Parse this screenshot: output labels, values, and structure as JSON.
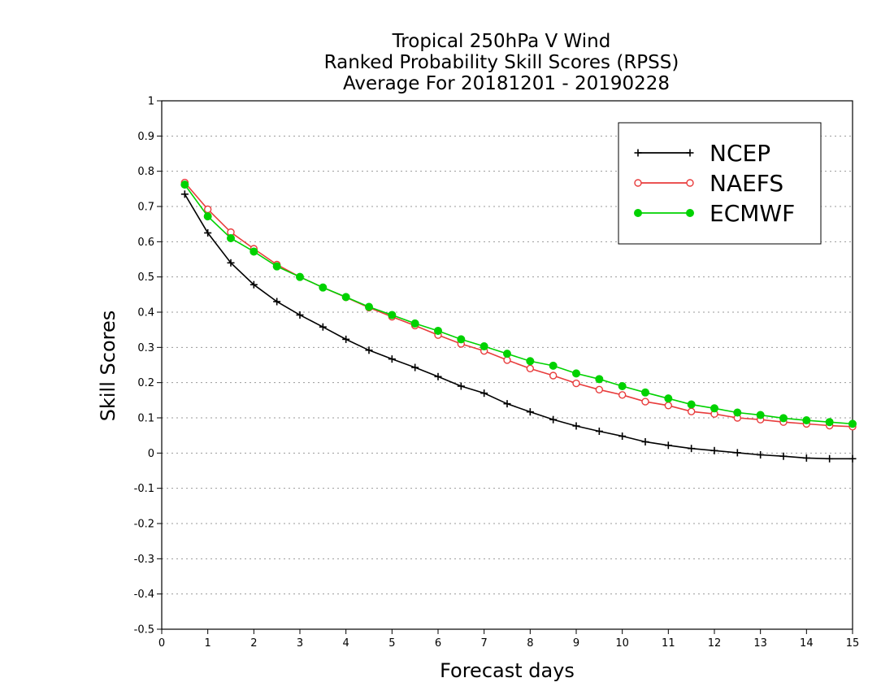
{
  "chart_data": {
    "type": "line",
    "title": "Tropical 250hPa V Wind",
    "subtitle": "Ranked Probability Skill Scores (RPSS)",
    "period": "Average For 20181201 - 20190228",
    "xlabel": "Forecast days",
    "ylabel": "Skill Scores",
    "xlim": [
      0,
      15
    ],
    "ylim": [
      -0.5,
      1
    ],
    "xticks": [
      0,
      1,
      2,
      3,
      4,
      5,
      6,
      7,
      8,
      9,
      10,
      11,
      12,
      13,
      14,
      15
    ],
    "yticks": [
      -0.5,
      -0.4,
      -0.3,
      -0.2,
      -0.1,
      0,
      0.1,
      0.2,
      0.3,
      0.4,
      0.5,
      0.6,
      0.7,
      0.8,
      0.9,
      1
    ],
    "ytick_labels": [
      "-0.5",
      "-0.4",
      "-0.3",
      "-0.2",
      "-0.1",
      "0",
      "0.1",
      "0.2",
      "0.3",
      "0.4",
      "0.5",
      "0.6",
      "0.7",
      "0.8",
      "0.9",
      "1"
    ],
    "grid": "horizontal dotted",
    "legend_position": "top-right",
    "x": [
      0.5,
      1,
      1.5,
      2,
      2.5,
      3,
      3.5,
      4,
      4.5,
      5,
      5.5,
      6,
      6.5,
      7,
      7.5,
      8,
      8.5,
      9,
      9.5,
      10,
      10.5,
      11,
      11.5,
      12,
      12.5,
      13,
      13.5,
      14,
      14.5,
      15
    ],
    "series": [
      {
        "name": "NCEP",
        "color": "#000000",
        "marker": "plus",
        "values": [
          0.735,
          0.625,
          0.54,
          0.478,
          0.43,
          0.392,
          0.358,
          0.323,
          0.292,
          0.267,
          0.243,
          0.217,
          0.19,
          0.17,
          0.14,
          0.117,
          0.095,
          0.077,
          0.062,
          0.048,
          0.032,
          0.022,
          0.013,
          0.007,
          0.001,
          -0.005,
          -0.009,
          -0.014,
          -0.016,
          -0.016
        ]
      },
      {
        "name": "NAEFS",
        "color": "#e83c3c",
        "marker": "open-circle",
        "values": [
          0.768,
          0.692,
          0.627,
          0.58,
          0.535,
          0.5,
          0.47,
          0.442,
          0.413,
          0.387,
          0.362,
          0.335,
          0.31,
          0.29,
          0.264,
          0.24,
          0.22,
          0.198,
          0.18,
          0.165,
          0.146,
          0.135,
          0.118,
          0.111,
          0.1,
          0.095,
          0.088,
          0.083,
          0.078,
          0.075
        ]
      },
      {
        "name": "ECMWF",
        "color": "#00d200",
        "marker": "filled-circle",
        "values": [
          0.762,
          0.672,
          0.61,
          0.572,
          0.53,
          0.5,
          0.47,
          0.443,
          0.415,
          0.392,
          0.368,
          0.347,
          0.323,
          0.303,
          0.282,
          0.261,
          0.248,
          0.226,
          0.21,
          0.19,
          0.172,
          0.155,
          0.138,
          0.127,
          0.115,
          0.108,
          0.099,
          0.093,
          0.088,
          0.083
        ]
      }
    ]
  }
}
